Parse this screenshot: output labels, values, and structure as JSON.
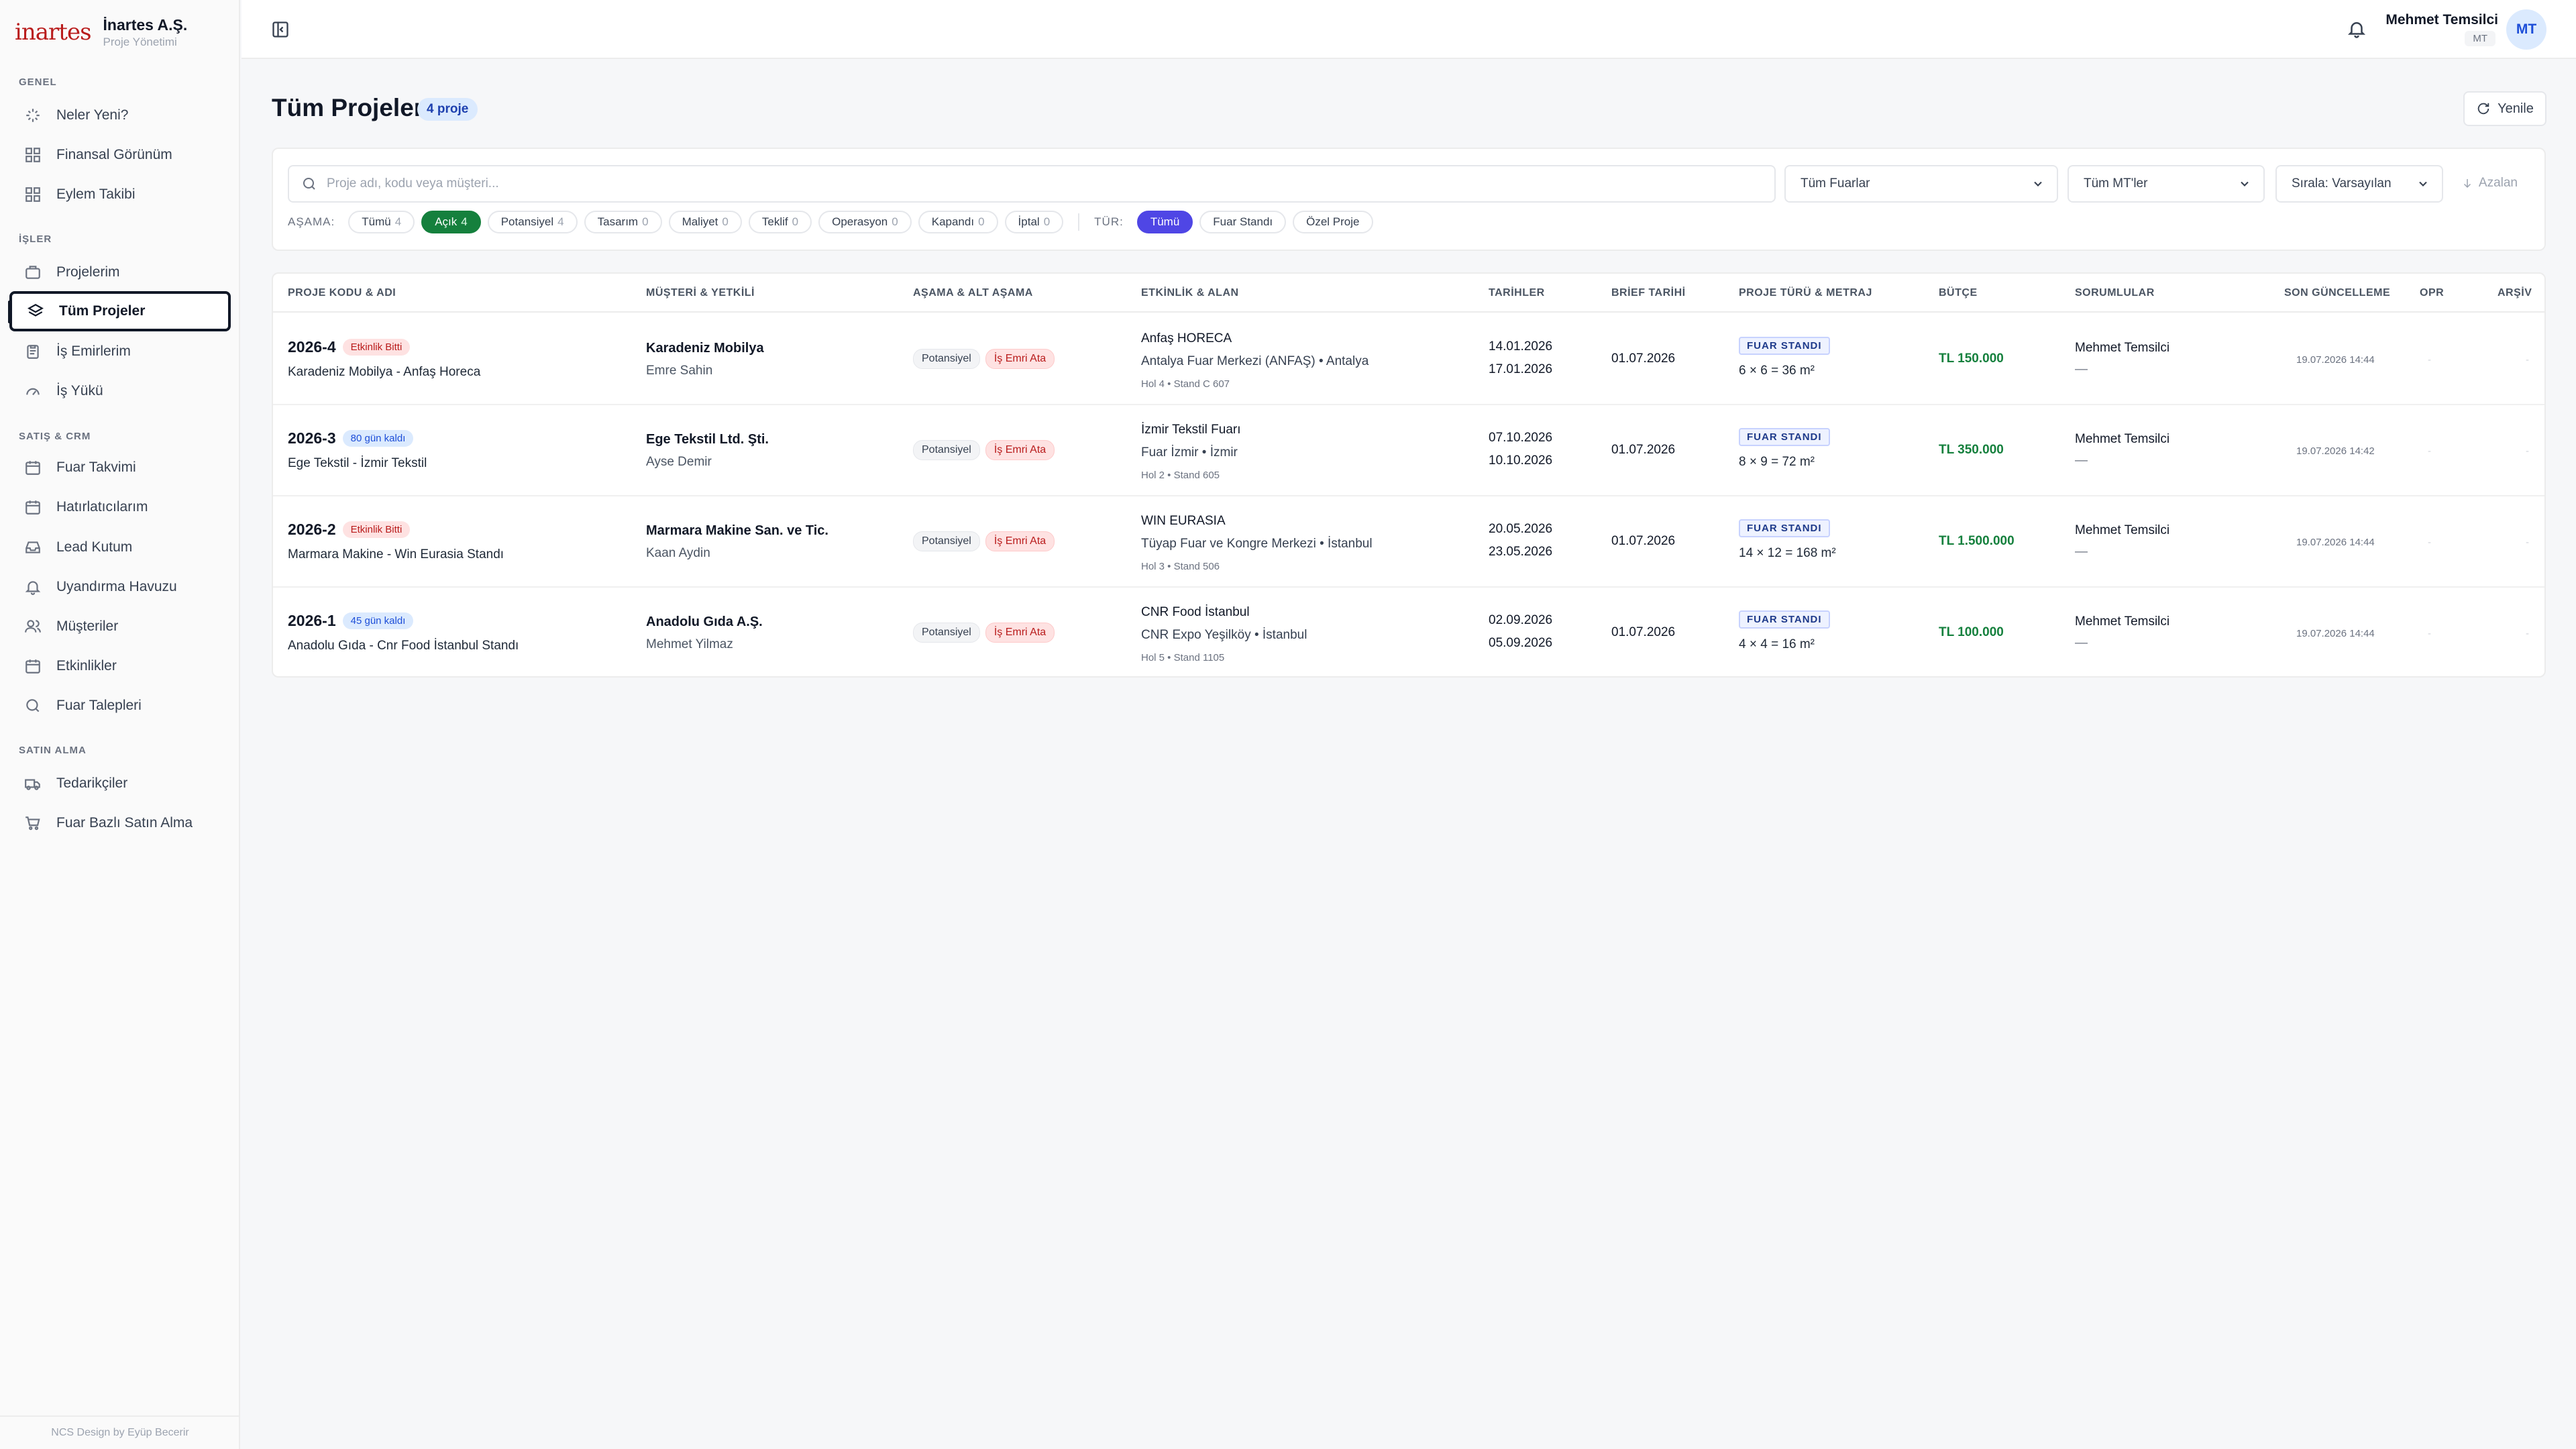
{
  "brand": {
    "logo_text": "inartes",
    "name": "İnartes A.Ş.",
    "subtitle": "Proje Yönetimi"
  },
  "sidebar": {
    "sections": [
      {
        "title": "GENEL",
        "items": [
          {
            "label": "Neler Yeni?",
            "icon": "sparkle-icon"
          },
          {
            "label": "Finansal Görünüm",
            "icon": "grid-icon"
          },
          {
            "label": "Eylem Takibi",
            "icon": "grid-icon"
          }
        ]
      },
      {
        "title": "İŞLER",
        "items": [
          {
            "label": "Projelerim",
            "icon": "briefcase-icon"
          },
          {
            "label": "Tüm Projeler",
            "icon": "layers-icon",
            "active": true
          },
          {
            "label": "İş Emirlerim",
            "icon": "clipboard-icon"
          },
          {
            "label": "İş Yükü",
            "icon": "gauge-icon"
          }
        ]
      },
      {
        "title": "SATIŞ & CRM",
        "items": [
          {
            "label": "Fuar Takvimi",
            "icon": "calendar-icon"
          },
          {
            "label": "Hatırlatıcılarım",
            "icon": "calendar-icon"
          },
          {
            "label": "Lead Kutum",
            "icon": "inbox-icon"
          },
          {
            "label": "Uyandırma Havuzu",
            "icon": "bell-icon"
          },
          {
            "label": "Müşteriler",
            "icon": "users-icon"
          },
          {
            "label": "Etkinlikler",
            "icon": "calendar-icon"
          },
          {
            "label": "Fuar Talepleri",
            "icon": "search-icon"
          }
        ]
      },
      {
        "title": "SATIN ALMA",
        "items": [
          {
            "label": "Tedarikçiler",
            "icon": "truck-icon"
          },
          {
            "label": "Fuar Bazlı Satın Alma",
            "icon": "cart-icon"
          }
        ]
      }
    ],
    "footer": "NCS Design by Eyüp Becerir"
  },
  "topbar": {
    "user_name": "Mehmet Temsilci",
    "user_role": "MT",
    "avatar": "MT"
  },
  "page": {
    "title": "Tüm Projeler",
    "count_badge": "4 proje",
    "refresh_label": "Yenile"
  },
  "filters": {
    "search_placeholder": "Proje adı, kodu veya müşteri...",
    "fair_select": "Tüm Fuarlar",
    "mt_select": "Tüm MT'ler",
    "sort_select": "Sırala: Varsayılan",
    "sort_dir": "Azalan",
    "stage_label": "AŞAMA:",
    "stages": [
      {
        "label": "Tümü",
        "count": "4"
      },
      {
        "label": "Açık",
        "count": "4",
        "active": true
      },
      {
        "label": "Potansiyel",
        "count": "4"
      },
      {
        "label": "Tasarım",
        "count": "0"
      },
      {
        "label": "Maliyet",
        "count": "0"
      },
      {
        "label": "Teklif",
        "count": "0"
      },
      {
        "label": "Operasyon",
        "count": "0"
      },
      {
        "label": "Kapandı",
        "count": "0"
      },
      {
        "label": "İptal",
        "count": "0"
      }
    ],
    "type_label": "TÜR:",
    "types": [
      {
        "label": "Tümü",
        "active": true
      },
      {
        "label": "Fuar Standı"
      },
      {
        "label": "Özel Proje"
      }
    ]
  },
  "table": {
    "headers": [
      "PROJE KODU & ADI",
      "MÜŞTERİ & YETKİLİ",
      "AŞAMA & ALT AŞAMA",
      "ETKİNLİK & ALAN",
      "TARİHLER",
      "BRİEF TARİHİ",
      "PROJE TÜRÜ & METRAJ",
      "BÜTÇE",
      "SORUMLULAR",
      "SON GÜNCELLEME",
      "OPR",
      "ARŞİV"
    ],
    "rows": [
      {
        "code": "2026-4",
        "tag": "Etkinlik Bitti",
        "tag_color": "red",
        "name": "Karadeniz Mobilya - Anfaş Horeca",
        "customer": "Karadeniz Mobilya",
        "contact": "Emre Sahin",
        "stage": "Potansiyel",
        "sub_stage": "İş Emri Ata",
        "event": "Anfaş HORECA",
        "venue": "Antalya Fuar Merkezi (ANFAŞ) • Antalya",
        "hall": "Hol 4 • Stand C 607",
        "date_start": "14.01.2026",
        "date_end": "17.01.2026",
        "brief": "01.07.2026",
        "type": "FUAR STANDI",
        "metraj": "6 × 6 = 36 m²",
        "budget": "TL 150.000",
        "responsible": "Mehmet Temsilci",
        "responsible2": "—",
        "updated": "19.07.2026 14:44",
        "opr": "-",
        "archive": "-"
      },
      {
        "code": "2026-3",
        "tag": "80 gün kaldı",
        "tag_color": "blue",
        "name": "Ege Tekstil - İzmir Tekstil",
        "customer": "Ege Tekstil Ltd. Şti.",
        "contact": "Ayse Demir",
        "stage": "Potansiyel",
        "sub_stage": "İş Emri Ata",
        "event": "İzmir Tekstil Fuarı",
        "venue": "Fuar İzmir • İzmir",
        "hall": "Hol 2 • Stand 605",
        "date_start": "07.10.2026",
        "date_end": "10.10.2026",
        "brief": "01.07.2026",
        "type": "FUAR STANDI",
        "metraj": "8 × 9 = 72 m²",
        "budget": "TL 350.000",
        "responsible": "Mehmet Temsilci",
        "responsible2": "—",
        "updated": "19.07.2026 14:42",
        "opr": "-",
        "archive": "-"
      },
      {
        "code": "2026-2",
        "tag": "Etkinlik Bitti",
        "tag_color": "red",
        "name": "Marmara Makine - Win Eurasia Standı",
        "customer": "Marmara Makine San. ve Tic.",
        "contact": "Kaan Aydin",
        "stage": "Potansiyel",
        "sub_stage": "İş Emri Ata",
        "event": "WIN EURASIA",
        "venue": "Tüyap Fuar ve Kongre Merkezi • İstanbul",
        "hall": "Hol 3 • Stand 506",
        "date_start": "20.05.2026",
        "date_end": "23.05.2026",
        "brief": "01.07.2026",
        "type": "FUAR STANDI",
        "metraj": "14 × 12 = 168 m²",
        "budget": "TL 1.500.000",
        "responsible": "Mehmet Temsilci",
        "responsible2": "—",
        "updated": "19.07.2026 14:44",
        "opr": "-",
        "archive": "-"
      },
      {
        "code": "2026-1",
        "tag": "45 gün kaldı",
        "tag_color": "blue",
        "name": "Anadolu Gıda - Cnr Food İstanbul Standı",
        "customer": "Anadolu Gıda A.Ş.",
        "contact": "Mehmet Yilmaz",
        "stage": "Potansiyel",
        "sub_stage": "İş Emri Ata",
        "event": "CNR Food İstanbul",
        "venue": "CNR Expo Yeşilköy • İstanbul",
        "hall": "Hol 5 • Stand 1105",
        "date_start": "02.09.2026",
        "date_end": "05.09.2026",
        "brief": "01.07.2026",
        "type": "FUAR STANDI",
        "metraj": "4 × 4 = 16 m²",
        "budget": "TL 100.000",
        "responsible": "Mehmet Temsilci",
        "responsible2": "—",
        "updated": "19.07.2026 14:44",
        "opr": "-",
        "archive": "-"
      }
    ]
  }
}
